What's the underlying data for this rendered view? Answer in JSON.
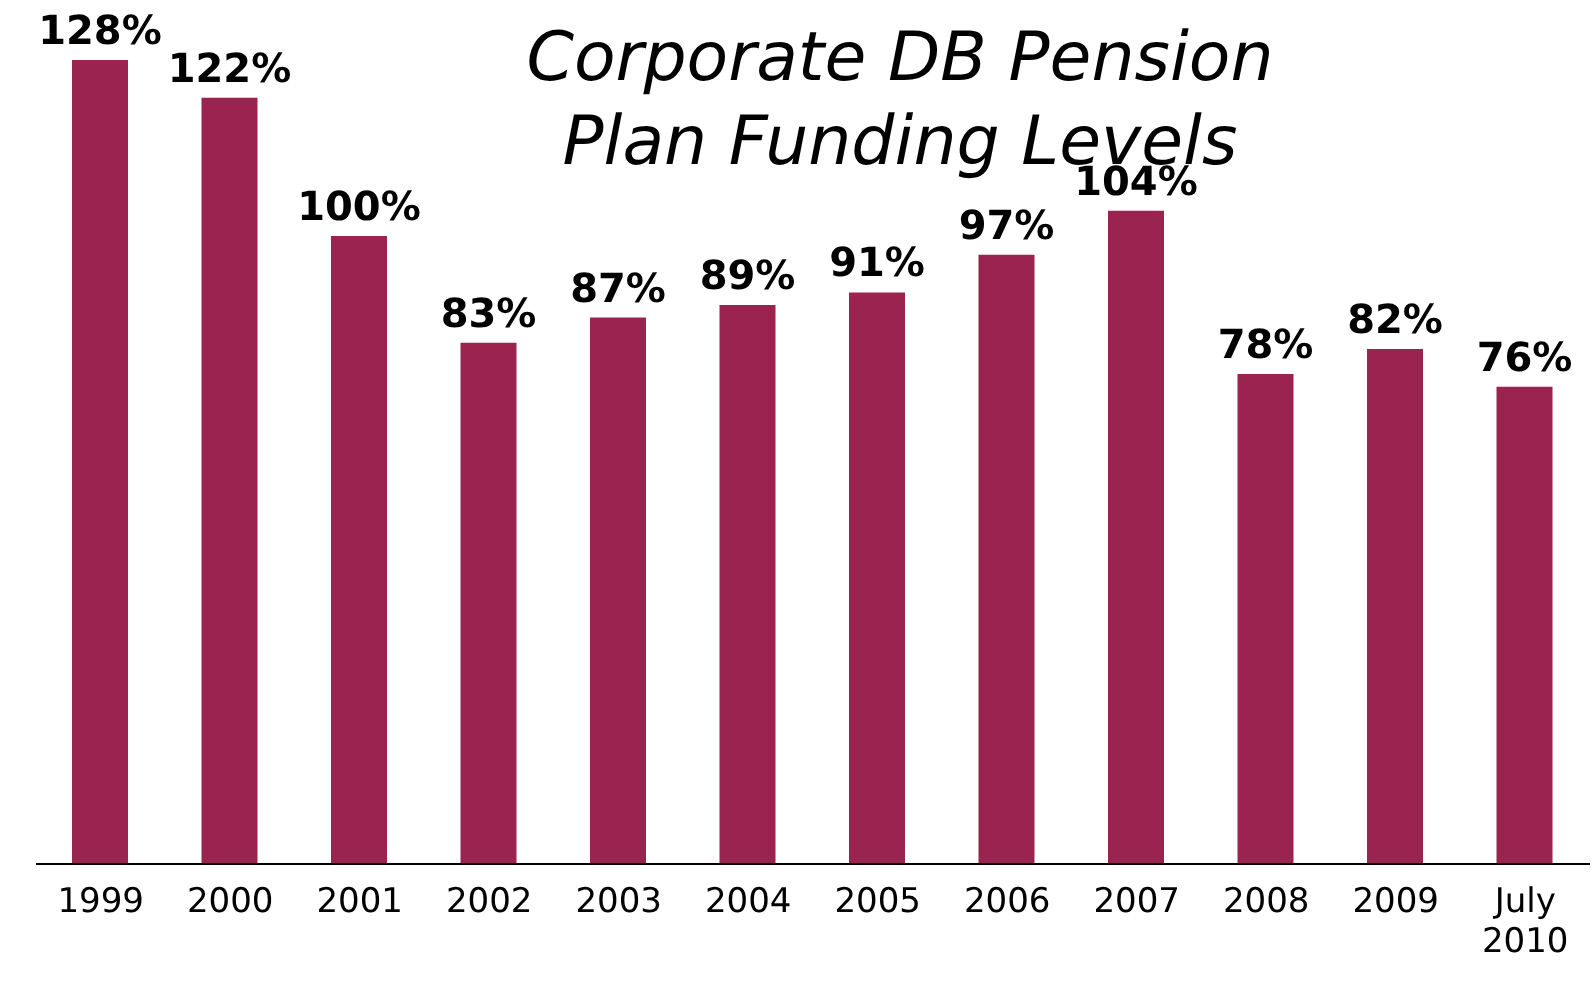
{
  "chart_data": {
    "type": "bar",
    "title": "Corporate DB Pension Plan Funding Levels",
    "categories": [
      "1999",
      "2000",
      "2001",
      "2002",
      "2003",
      "2004",
      "2005",
      "2006",
      "2007",
      "2008",
      "2009",
      "July 2010"
    ],
    "values": [
      128,
      122,
      100,
      83,
      87,
      89,
      91,
      97,
      104,
      78,
      82,
      76
    ],
    "value_labels": [
      "128%",
      "122%",
      "100%",
      "83%",
      "87%",
      "89%",
      "91%",
      "97%",
      "104%",
      "78%",
      "82%",
      "76%"
    ],
    "color": "#9b2350",
    "grid": false,
    "legend": false
  }
}
